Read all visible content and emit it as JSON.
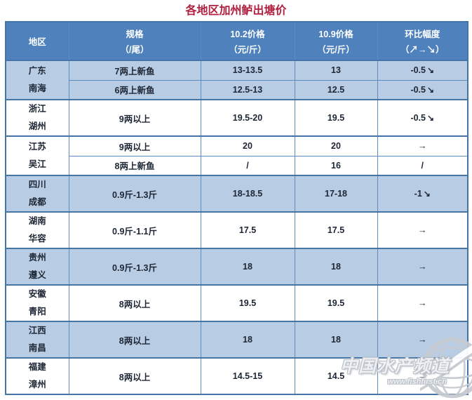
{
  "title": "各地区加州鲈出塘价",
  "table": {
    "headers": [
      {
        "line1": "地区",
        "line2": ""
      },
      {
        "line1": "规格",
        "line2": "（/尾）"
      },
      {
        "line1": "10.2价格",
        "line2": "（元/斤）"
      },
      {
        "line1": "10.9价格",
        "line2": "（元/斤）"
      },
      {
        "line1": "环比幅度",
        "line2": "（↗→↘）"
      }
    ],
    "groups": [
      {
        "region": [
          "广东",
          "南海"
        ],
        "shaded": true,
        "rows": [
          {
            "spec": "7两上新鱼",
            "price_oct2": "13-13.5",
            "price_oct9": "13",
            "change": "-0.5",
            "trend": "down"
          },
          {
            "spec": "6两上新鱼",
            "price_oct2": "12.5-13",
            "price_oct9": "12.5",
            "change": "-0.5",
            "trend": "down"
          }
        ]
      },
      {
        "region": [
          "浙江",
          "湖州"
        ],
        "shaded": false,
        "rows": [
          {
            "spec": "9两以上",
            "price_oct2": "19.5-20",
            "price_oct9": "19.5",
            "change": "-0.5",
            "trend": "down"
          }
        ]
      },
      {
        "region": [
          "江苏",
          "吴江"
        ],
        "shaded": false,
        "rows": [
          {
            "spec": "9两以上",
            "price_oct2": "20",
            "price_oct9": "20",
            "change": "→",
            "trend": "flat"
          },
          {
            "spec": "8两上新鱼",
            "price_oct2": "/",
            "price_oct9": "16",
            "change": "/",
            "trend": "none"
          }
        ]
      },
      {
        "region": [
          "四川",
          "成都"
        ],
        "shaded": true,
        "rows": [
          {
            "spec": "0.9斤-1.3斤",
            "price_oct2": "18-18.5",
            "price_oct9": "17-18",
            "change": "-1",
            "trend": "down"
          }
        ]
      },
      {
        "region": [
          "湖南",
          "华容"
        ],
        "shaded": false,
        "rows": [
          {
            "spec": "0.9斤-1.1斤",
            "price_oct2": "17.5",
            "price_oct9": "17.5",
            "change": "→",
            "trend": "flat"
          }
        ]
      },
      {
        "region": [
          "贵州",
          "遵义"
        ],
        "shaded": true,
        "rows": [
          {
            "spec": "0.9斤-1.3斤",
            "price_oct2": "18",
            "price_oct9": "18",
            "change": "→",
            "trend": "flat"
          }
        ]
      },
      {
        "region": [
          "安徽",
          "青阳"
        ],
        "shaded": false,
        "rows": [
          {
            "spec": "8两以上",
            "price_oct2": "19.5",
            "price_oct9": "19.5",
            "change": "→",
            "trend": "flat"
          }
        ]
      },
      {
        "region": [
          "江西",
          "南昌"
        ],
        "shaded": true,
        "rows": [
          {
            "spec": "8两以上",
            "price_oct2": "18",
            "price_oct9": "18",
            "change": "→",
            "trend": "flat"
          }
        ]
      },
      {
        "region": [
          "福建",
          "漳州"
        ],
        "shaded": false,
        "rows": [
          {
            "spec": "8两以上",
            "price_oct2": "14.5-15",
            "price_oct9": "14.5",
            "change": "→",
            "trend": "flat"
          }
        ]
      }
    ]
  },
  "watermark": {
    "text": "中国水产频道",
    "url": "www.fishfirst.cn"
  },
  "colors": {
    "header_bg": "#4f81bd",
    "shaded_row_bg": "#b8cce4",
    "border": "#4575a7",
    "title_text": "#b01f3e",
    "body_text": "#1d2634",
    "decrease_green": "#00b050"
  },
  "chart_data": {
    "type": "table",
    "title": "各地区加州鲈出塘价",
    "columns": [
      "地区",
      "规格（/尾）",
      "10.2价格（元/斤）",
      "10.9价格（元/斤）",
      "环比幅度（↗→↘）"
    ],
    "rows": [
      [
        "广东南海",
        "7两上新鱼",
        "13-13.5",
        "13",
        "-0.5↘"
      ],
      [
        "广东南海",
        "6两上新鱼",
        "12.5-13",
        "12.5",
        "-0.5↘"
      ],
      [
        "浙江湖州",
        "9两以上",
        "19.5-20",
        "19.5",
        "-0.5↘"
      ],
      [
        "江苏吴江",
        "9两以上",
        "20",
        "20",
        "→"
      ],
      [
        "江苏吴江",
        "8两上新鱼",
        "/",
        "16",
        "/"
      ],
      [
        "四川成都",
        "0.9斤-1.3斤",
        "18-18.5",
        "17-18",
        "-1↘"
      ],
      [
        "湖南华容",
        "0.9斤-1.1斤",
        "17.5",
        "17.5",
        "→"
      ],
      [
        "贵州遵义",
        "0.9斤-1.3斤",
        "18",
        "18",
        "→"
      ],
      [
        "安徽青阳",
        "8两以上",
        "19.5",
        "19.5",
        "→"
      ],
      [
        "江西南昌",
        "8两以上",
        "18",
        "18",
        "→"
      ],
      [
        "福建漳州",
        "8两以上",
        "14.5-15",
        "14.5",
        "→"
      ]
    ]
  }
}
